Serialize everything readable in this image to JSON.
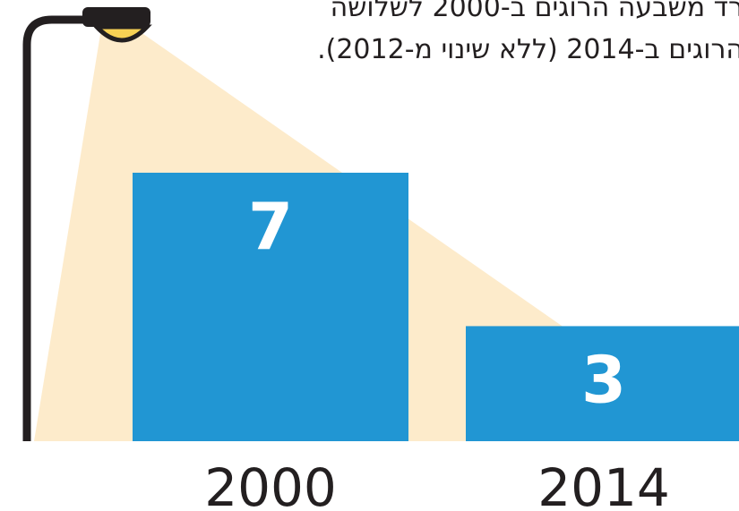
{
  "chart_data": {
    "type": "bar",
    "annotations": [
      "רד משבעה הרוגים ב-2000 לשלושה",
      "הרוגים ב-2014 (ללא שינוי מ-2012)."
    ],
    "categories": [
      "2000",
      "2014"
    ],
    "values": [
      7,
      3
    ],
    "color": "#2196d3"
  }
}
